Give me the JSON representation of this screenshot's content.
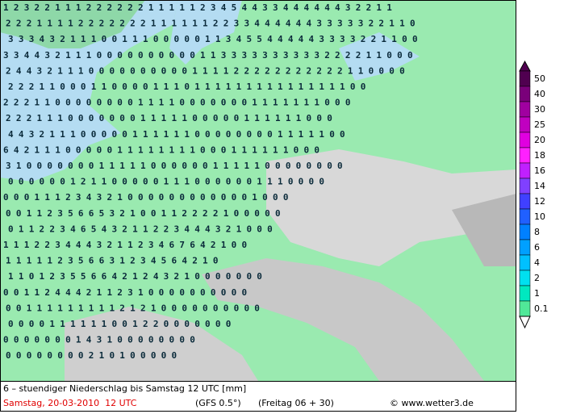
{
  "map": {
    "rows": [
      "1 2 3 2 2 1 1 1 2 2 2 2 2 2 1 1 1 1 1 2 3 4 5 4 4 3 3 4 4 4 4 4 4 3 2 2 1 1",
      "2 2 2 1 1 1 1 2 2 2 2 2 2 2 1 1 1 1 1 1 2 2 3 3 4 4 4 4 4 4 3 3 3 3 3 2 2 1 1 0",
      "3 3 3 4 3 2 1 1 1 0 0 1 1 1 0 0 0 0 0 1 1 3 4 5 5 4 4 4 4 4 3 3 3 3 2 2 1 1 0 0",
      "3 3 4 4 3 2 1 1 1 0 0 0 0 0 0 0 0 0 0 1 1 3 3 3 3 3 3 3 3 3 3 2 2 2 2 1 1 0 0 0",
      "2 4 4 3 2 1 1 1 0 0 0 0 0 0 0 0 0 0 1 1 1 1 2 2 2 2 2 2 2 2 2 2 2 1 1 0 0 0 0",
      "2 2 2 1 1 0 0 0 1 1 0 0 0 0 1 1 1 0 1 1 1 1 1 1 1 1 1 1 1 1 1 1 1 0 0",
      "2 2 2 1 1 0 0 0 0 0 0 0 0 1 1 1 1 0 0 0 0 0 0 0 1 1 1 1 1 1 1 0 0 0",
      "2 2 2 1 1 1 0 0 0 0 0 0 0 1 1 1 1 1 0 0 0 0 0 1 1 1 1 1 1 0 0 0",
      "4 4 3 2 1 1 1 0 0 0 0 0 1 1 1 1 1 1 0 0 0 0 0 0 0 0 1 1 1 1 1 0 0",
      "6 4 2 1 1 1 0 0 0 0 0 1 1 1 1 1 1 1 1 0 0 0 1 1 1 1 1 1 0 0 0",
      "3 1 0 0 0 0 0 0 0 1 1 1 1 1 0 0 0 0 0 0 1 1 1 1 1 0 0 0 0 0 0 0 0",
      "0 0 0 0 0 0 1 2 1 1 0 0 0 0 0 1 1 1 0 0 0 0 0 0 1 1 1 0 0 0 0",
      "0 0 0 1 1 1 2 3 4 3 2 1 0 0 0 0 0 0 0 0 0 0 0 0 1 0 0 0",
      "0 0 1 1 2 3 5 6 6 5 3 2 1 0 0 1 1 2 2 2 2 1 0 0 0 0 0",
      "0 1 1 2 2 3 4 6 5 4 3 2 1 1 2 2 3 4 4 4 3 2 1 0 0 0",
      "1 1 1 2 2 3 4 4 4 3 2 1 1 2 3 4 6 7 6 4 2 1 0 0",
      "1 1 1 1 1 2 3 5 6 6 3 1 2 3 4 5 6 4 2 1 0",
      "1 1 0 1 2 3 5 5 6 6 4 2 1 2 4 3 2 1 0 0 0 0 0 0 0",
      "0 0 1 1 2 4 4 4 2 1 1 2 3 1 0 0 0 0 0 0 0 0 0 0",
      "0 0 1 1 1 1 1 1 1 1 1 2 1 2 1 0 0 0 0 0 0 0 0 0 0",
      "0 0 0 0 1 1 1 1 1 1 0 0 1 2 2 0 0 0 0 0 0 0",
      "0 0 0 0 0 0 0 1 4 3 1 0 0 0 0 0 0 0 0",
      "0 0 0 0 0 0 0 0 2 1 0 1 0 0 0 0 0"
    ]
  },
  "legend": {
    "levels": [
      50,
      40,
      30,
      25,
      20,
      18,
      16,
      14,
      12,
      10,
      8,
      6,
      4,
      2,
      1,
      0.1
    ],
    "colors": [
      "#500050",
      "#7a007a",
      "#a000a0",
      "#c000c0",
      "#e000e0",
      "#ff20ff",
      "#c020ff",
      "#8040ff",
      "#4040ff",
      "#2060ff",
      "#0080ff",
      "#00a0ff",
      "#00c0ff",
      "#00e0f0",
      "#00e8c0",
      "#50e898"
    ]
  },
  "footer": {
    "line1": "6 – stuendiger Niederschlag bis Samstag 12 UTC [mm]",
    "date": "Samstag, 20-03-2010  12 UTC",
    "model": "(GFS 0.5°)",
    "run": "(Freitag 06 + 30)",
    "credit": "© www.wetter3.de"
  }
}
